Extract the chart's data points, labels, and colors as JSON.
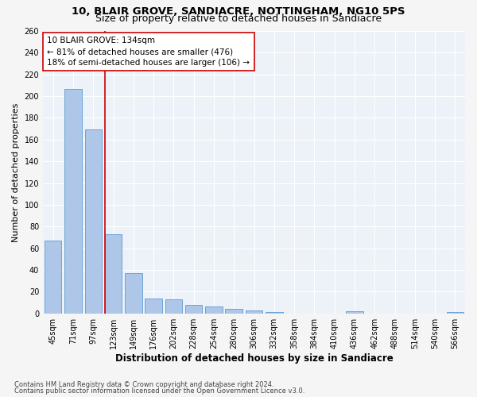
{
  "title": "10, BLAIR GROVE, SANDIACRE, NOTTINGHAM, NG10 5PS",
  "subtitle": "Size of property relative to detached houses in Sandiacre",
  "xlabel": "Distribution of detached houses by size in Sandiacre",
  "ylabel": "Number of detached properties",
  "categories": [
    "45sqm",
    "71sqm",
    "97sqm",
    "123sqm",
    "149sqm",
    "176sqm",
    "202sqm",
    "228sqm",
    "254sqm",
    "280sqm",
    "306sqm",
    "332sqm",
    "358sqm",
    "384sqm",
    "410sqm",
    "436sqm",
    "462sqm",
    "488sqm",
    "514sqm",
    "540sqm",
    "566sqm"
  ],
  "values": [
    67,
    207,
    169,
    73,
    37,
    14,
    13,
    8,
    6,
    4,
    3,
    1,
    0,
    0,
    0,
    2,
    0,
    0,
    0,
    0,
    1
  ],
  "bar_color": "#aec6e8",
  "bar_edge_color": "#5b9bd5",
  "highlight_index": 3,
  "highlight_line_color": "#cc0000",
  "annotation_text": "10 BLAIR GROVE: 134sqm\n← 81% of detached houses are smaller (476)\n18% of semi-detached houses are larger (106) →",
  "annotation_box_color": "#ffffff",
  "annotation_box_edge_color": "#cc0000",
  "footnote1": "Contains HM Land Registry data © Crown copyright and database right 2024.",
  "footnote2": "Contains public sector information licensed under the Open Government Licence v3.0.",
  "ylim": [
    0,
    260
  ],
  "yticks": [
    0,
    20,
    40,
    60,
    80,
    100,
    120,
    140,
    160,
    180,
    200,
    220,
    240,
    260
  ],
  "bg_color": "#edf2f9",
  "fig_bg_color": "#f5f5f5",
  "title_fontsize": 9.5,
  "subtitle_fontsize": 9,
  "xlabel_fontsize": 8.5,
  "ylabel_fontsize": 8,
  "tick_fontsize": 7,
  "annotation_fontsize": 7.5
}
